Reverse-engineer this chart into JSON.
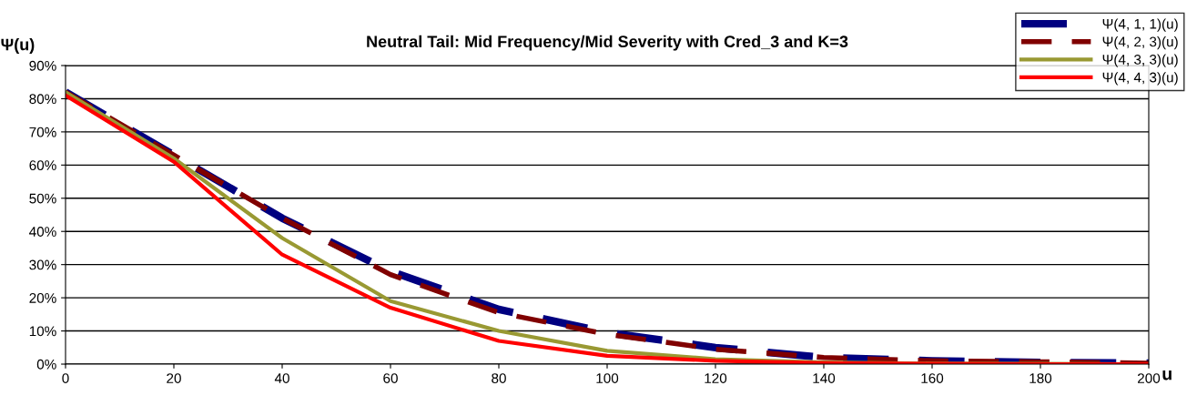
{
  "chart_data": {
    "type": "line",
    "title": "Neutral Tail: Mid Frequency/Mid Severity with Cred_3 and K=3",
    "xlabel": "u",
    "ylabel": "Ψ(u)",
    "x": [
      0,
      20,
      40,
      60,
      80,
      100,
      120,
      140,
      160,
      180,
      200
    ],
    "series": [
      {
        "name": "Ψ(4, 1, 1)(u)",
        "color": "#000080",
        "line_style": "dashed",
        "values": [
          82,
          63,
          44,
          28,
          16.5,
          9.5,
          5,
          2,
          1,
          0.5,
          0.3
        ]
      },
      {
        "name": "Ψ(4, 2, 3)(u)",
        "color": "#800000",
        "line_style": "dashed",
        "values": [
          82,
          63,
          44,
          27,
          15.5,
          9,
          4.5,
          2,
          1,
          0.7,
          0.3
        ]
      },
      {
        "name": "Ψ(4, 3, 3)(u)",
        "color": "#999933",
        "line_style": "solid",
        "values": [
          82,
          62,
          38,
          19,
          10,
          4,
          1.5,
          0.5,
          0.2,
          0.1,
          0
        ]
      },
      {
        "name": "Ψ(4, 4, 3)(u)",
        "color": "#ff0000",
        "line_style": "solid",
        "values": [
          81,
          61,
          33,
          17,
          7,
          2.5,
          1,
          0.3,
          0.1,
          0,
          0
        ]
      }
    ],
    "xlim": [
      0,
      200
    ],
    "xticks": [
      0,
      20,
      40,
      60,
      80,
      100,
      120,
      140,
      160,
      180,
      200
    ],
    "ylim": [
      0,
      90
    ],
    "yticks": [
      {
        "value": 0,
        "label": "0%"
      },
      {
        "value": 10,
        "label": "10%"
      },
      {
        "value": 20,
        "label": "20%"
      },
      {
        "value": 30,
        "label": "30%"
      },
      {
        "value": 40,
        "label": "40%"
      },
      {
        "value": 50,
        "label": "50%"
      },
      {
        "value": 60,
        "label": "60%"
      },
      {
        "value": 70,
        "label": "70%"
      },
      {
        "value": 80,
        "label": "80%"
      },
      {
        "value": 90,
        "label": "90%"
      }
    ],
    "grid": "y",
    "legend": "top right",
    "marker": "none"
  }
}
